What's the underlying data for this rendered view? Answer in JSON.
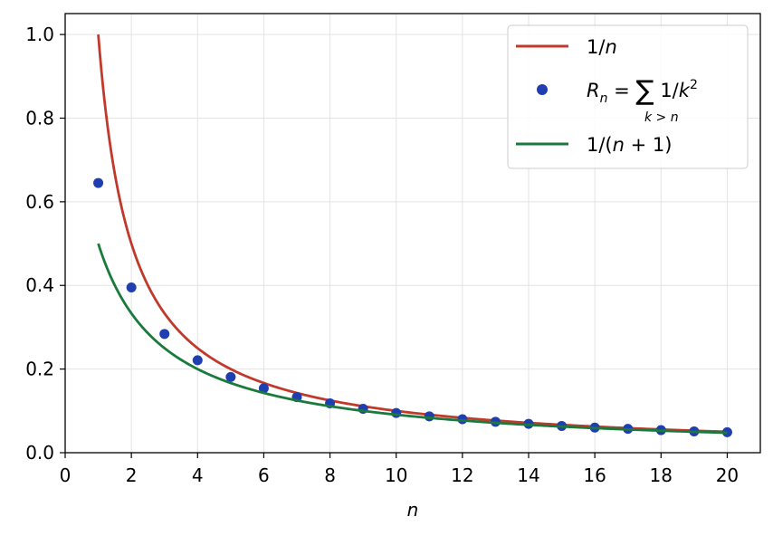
{
  "chart_data": {
    "type": "line",
    "xlabel": "n",
    "ylabel": "",
    "xlim": [
      0,
      21
    ],
    "ylim": [
      0,
      1.05
    ],
    "xticks": [
      0,
      2,
      4,
      6,
      8,
      10,
      12,
      14,
      16,
      18,
      20
    ],
    "yticks": [
      0.0,
      0.2,
      0.4,
      0.6,
      0.8,
      1.0
    ],
    "xtick_labels": [
      "0",
      "2",
      "4",
      "6",
      "8",
      "10",
      "12",
      "14",
      "16",
      "18",
      "20"
    ],
    "ytick_labels": [
      "0.0",
      "0.2",
      "0.4",
      "0.6",
      "0.8",
      "1.0"
    ],
    "grid": true,
    "legend_position": "top-right",
    "series": [
      {
        "name": "1/n",
        "kind": "line",
        "color": "#c0392b",
        "function": "1/n",
        "x_range": [
          1,
          20
        ]
      },
      {
        "name": "R_n = Σ_{k>n} 1/k²",
        "kind": "scatter",
        "color": "#1f3fb0",
        "x": [
          1,
          2,
          3,
          4,
          5,
          6,
          7,
          8,
          9,
          10,
          11,
          12,
          13,
          14,
          15,
          16,
          17,
          18,
          19,
          20
        ],
        "values": [
          0.645,
          0.395,
          0.284,
          0.221,
          0.181,
          0.154,
          0.133,
          0.118,
          0.105,
          0.095,
          0.087,
          0.08,
          0.074,
          0.069,
          0.064,
          0.06,
          0.057,
          0.054,
          0.051,
          0.049
        ]
      },
      {
        "name": "1/(n+1)",
        "kind": "line",
        "color": "#1a7a3c",
        "function": "1/(n+1)",
        "x_range": [
          1,
          20
        ]
      }
    ]
  }
}
